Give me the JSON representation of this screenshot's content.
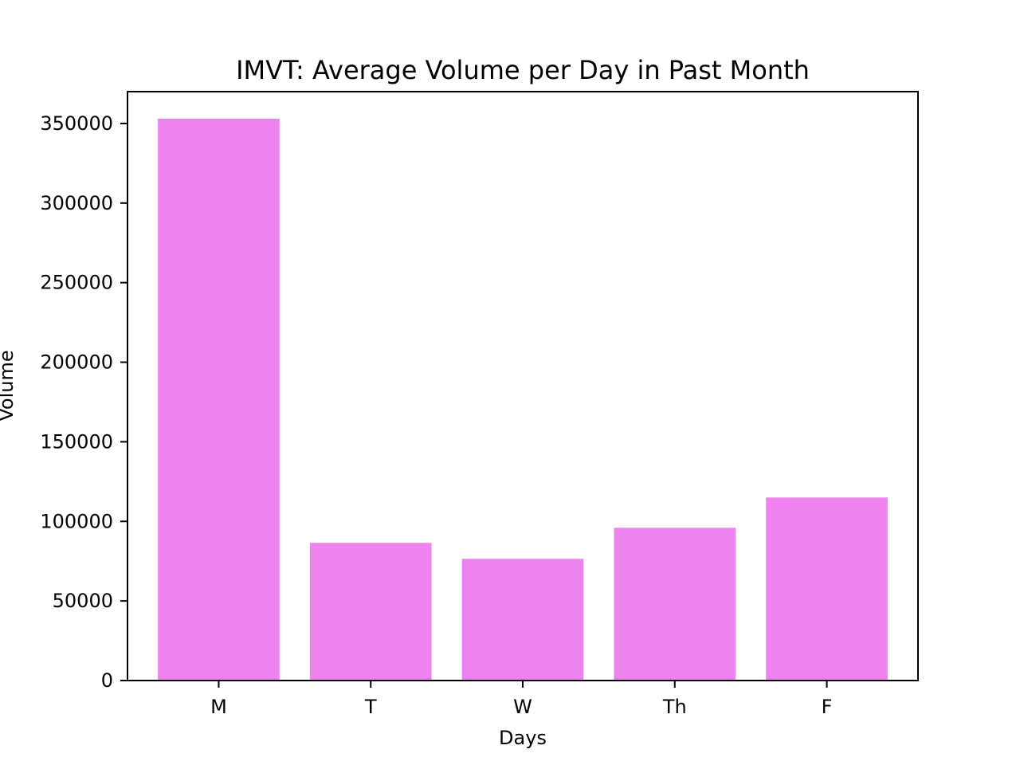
{
  "chart_data": {
    "type": "bar",
    "title": "IMVT: Average Volume per Day in Past Month",
    "xlabel": "Days",
    "ylabel": "Volume",
    "categories": [
      "M",
      "T",
      "W",
      "Th",
      "F"
    ],
    "values": [
      353000,
      86500,
      76500,
      96000,
      115000
    ],
    "ylim": [
      0,
      370000
    ],
    "yticks": [
      0,
      50000,
      100000,
      150000,
      200000,
      250000,
      300000,
      350000
    ],
    "bar_color": "#ee82ee",
    "grid": false,
    "legend": "none"
  }
}
